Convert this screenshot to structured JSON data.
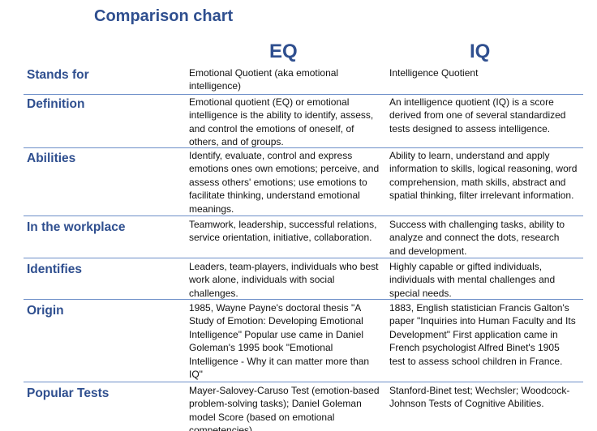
{
  "title": "Comparison chart",
  "columns": {
    "eq": "EQ",
    "iq": "IQ"
  },
  "rows": [
    {
      "label": "Stands for",
      "eq": "Emotional Quotient (aka emotional intelligence)",
      "iq": "Intelligence Quotient"
    },
    {
      "label": "Definition",
      "eq": "Emotional quotient (EQ) or emotional intelligence is the ability to identify, assess, and control the emotions of oneself, of others, and of groups.",
      "iq": "An intelligence quotient (IQ) is a score derived from one of several standardized tests designed to assess intelligence."
    },
    {
      "label": "Abilities",
      "eq": "Identify, evaluate, control and express emotions ones own emotions; perceive, and assess others' emotions; use emotions to facilitate thinking, understand emotional meanings.",
      "iq": "Ability to learn, understand and apply information to skills, logical reasoning, word comprehension, math skills, abstract and spatial thinking, filter irrelevant information."
    },
    {
      "label": "In the workplace",
      "eq": "Teamwork, leadership, successful relations, service orientation, initiative, collaboration.",
      "iq": "Success with challenging tasks, ability to analyze and connect the dots, research and development."
    },
    {
      "label": "Identifies",
      "eq": "Leaders, team-players, individuals who best work alone, individuals with social challenges.",
      "iq": "Highly capable or gifted individuals, individuals with mental challenges and special needs."
    },
    {
      "label": "Origin",
      "eq": "1985, Wayne Payne's doctoral thesis \"A Study of Emotion: Developing Emotional Intelligence\" Popular use came in Daniel Goleman's 1995 book \"Emotional Intelligence - Why it can matter more than IQ\"",
      "iq": "1883, English statistician Francis Galton's paper \"Inquiries into Human Faculty and Its Development\" First application came in French psychologist Alfred Binet's 1905 test to assess school children in France."
    },
    {
      "label": "Popular Tests",
      "eq": "Mayer-Salovey-Caruso Test (emotion-based problem-solving tasks); Daniel Goleman model Score (based on emotional competencies)",
      "iq": "Stanford-Binet test; Wechsler; Woodcock-Johnson Tests of Cognitive Abilities."
    }
  ]
}
